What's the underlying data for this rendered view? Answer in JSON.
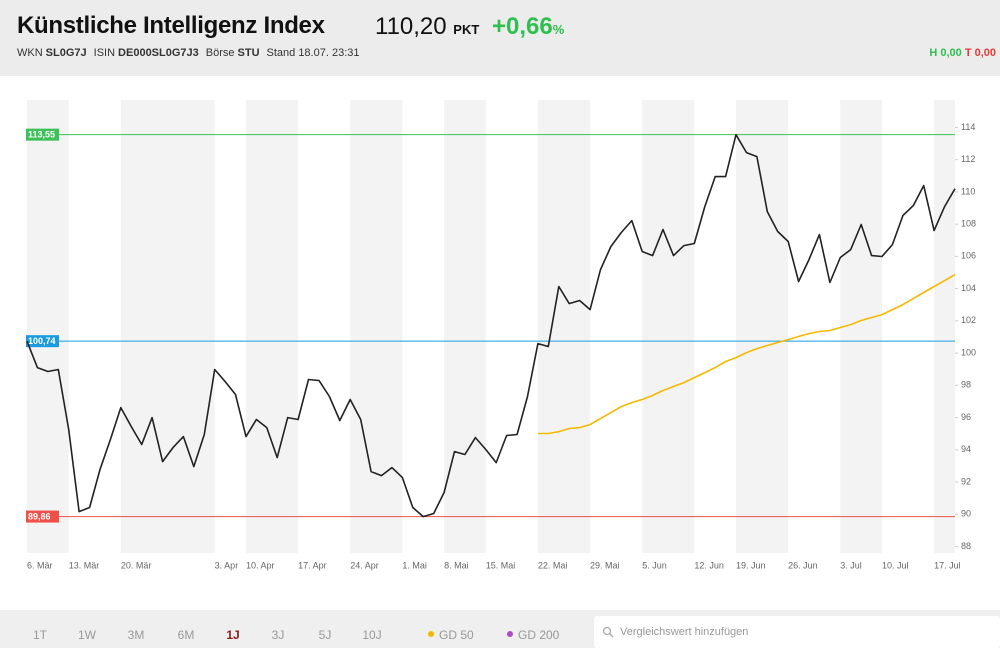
{
  "header": {
    "title": "Künstliche Intelligenz Index",
    "price": "110,20",
    "unit": "PKT",
    "change": "+0,66",
    "change_unit": "%",
    "meta": [
      {
        "label": "WKN",
        "value": "SL0G7J"
      },
      {
        "label": "ISIN",
        "value": "DE000SL0G7J3"
      },
      {
        "label": "Börse",
        "value": "STU"
      }
    ],
    "stand": "Stand 18.07. 23:31",
    "high": "H 0,00",
    "low": "T 0,00"
  },
  "chart_data": {
    "type": "line",
    "categories": [
      "6. Mär",
      null,
      null,
      null,
      "13. Mär",
      null,
      null,
      null,
      null,
      "20. Mär",
      null,
      null,
      null,
      null,
      null,
      null,
      null,
      null,
      "3. Apr",
      null,
      null,
      "10. Apr",
      null,
      null,
      null,
      null,
      "17. Apr",
      null,
      null,
      null,
      null,
      "24. Apr",
      null,
      null,
      null,
      null,
      "1. Mai",
      null,
      null,
      null,
      "8. Mai",
      null,
      null,
      null,
      "15. Mai",
      null,
      null,
      null,
      null,
      "22. Mai",
      null,
      null,
      null,
      null,
      "29. Mai",
      null,
      null,
      null,
      null,
      "5. Jun",
      null,
      null,
      null,
      null,
      "12. Jun",
      null,
      null,
      null,
      "19. Jun",
      null,
      null,
      null,
      null,
      "26. Jun",
      null,
      null,
      null,
      null,
      "3. Jul",
      null,
      null,
      null,
      "10. Jul",
      null,
      null,
      null,
      null,
      "17. Jul",
      null,
      null
    ],
    "series": [
      {
        "color": "#222222",
        "values": [
          100.74,
          99.1,
          98.86,
          98.98,
          95.26,
          90.17,
          90.42,
          92.78,
          94.64,
          96.62,
          95.44,
          94.33,
          96.0,
          93.27,
          94.14,
          94.82,
          92.96,
          94.95,
          98.98,
          98.24,
          97.43,
          94.82,
          95.88,
          95.38,
          93.52,
          96.0,
          95.88,
          98.36,
          98.3,
          97.31,
          95.82,
          97.12,
          95.88,
          92.65,
          92.4,
          92.9,
          92.28,
          90.42,
          89.86,
          90.05,
          91.35,
          93.89,
          93.71,
          94.76,
          94.02,
          93.21,
          94.89,
          94.95,
          97.31,
          100.59,
          100.41,
          104.13,
          103.07,
          103.26,
          102.7,
          105.18,
          106.61,
          107.48,
          108.22,
          106.3,
          106.05,
          107.67,
          106.05,
          106.67,
          106.8,
          109.09,
          110.95,
          110.95,
          113.55,
          112.44,
          112.19,
          108.78,
          107.54,
          106.92,
          104.44,
          105.8,
          107.35,
          104.38,
          105.93,
          106.42,
          107.98,
          106.05,
          105.99,
          106.73,
          108.53,
          109.15,
          110.39,
          107.6,
          109.09,
          110.2
        ]
      },
      {
        "name": "GD 50",
        "color": "#f5b800",
        "values": [
          null,
          null,
          null,
          null,
          null,
          null,
          null,
          null,
          null,
          null,
          null,
          null,
          null,
          null,
          null,
          null,
          null,
          null,
          null,
          null,
          null,
          null,
          null,
          null,
          null,
          null,
          null,
          null,
          null,
          null,
          null,
          null,
          null,
          null,
          null,
          null,
          null,
          null,
          null,
          null,
          null,
          null,
          null,
          null,
          null,
          null,
          null,
          null,
          null,
          95.01,
          95.01,
          95.13,
          95.32,
          95.38,
          95.57,
          95.94,
          96.31,
          96.68,
          96.93,
          97.12,
          97.37,
          97.68,
          97.93,
          98.17,
          98.48,
          98.79,
          99.1,
          99.48,
          99.72,
          100.03,
          100.28,
          100.47,
          100.66,
          100.84,
          101.03,
          101.21,
          101.34,
          101.4,
          101.59,
          101.77,
          102.02,
          102.21,
          102.39,
          102.7,
          103.01,
          103.38,
          103.76,
          104.13,
          104.5,
          104.87
        ]
      }
    ],
    "ylim": [
      87.6,
      115.7
    ],
    "yticks": [
      88,
      90,
      92,
      94,
      96,
      98,
      100,
      102,
      104,
      106,
      108,
      110,
      112,
      114
    ],
    "reference_lines": [
      {
        "value": 113.55,
        "label": "113,55",
        "color": "#3cc15a"
      },
      {
        "value": 100.74,
        "label": "100,74",
        "color": "#1a9be0"
      },
      {
        "value": 89.86,
        "label": "89,86",
        "color": "#f0504a"
      }
    ]
  },
  "toolbar": {
    "ranges": [
      {
        "label": "1T"
      },
      {
        "label": "1W"
      },
      {
        "label": "3M"
      },
      {
        "label": "6M"
      },
      {
        "label": "1J",
        "active": true
      },
      {
        "label": "3J"
      },
      {
        "label": "5J"
      },
      {
        "label": "10J"
      }
    ],
    "extra_indicator": {
      "name": "GD 200",
      "color": "#b04bc8"
    },
    "search_placeholder": "Vergleichswert hinzufügen"
  }
}
